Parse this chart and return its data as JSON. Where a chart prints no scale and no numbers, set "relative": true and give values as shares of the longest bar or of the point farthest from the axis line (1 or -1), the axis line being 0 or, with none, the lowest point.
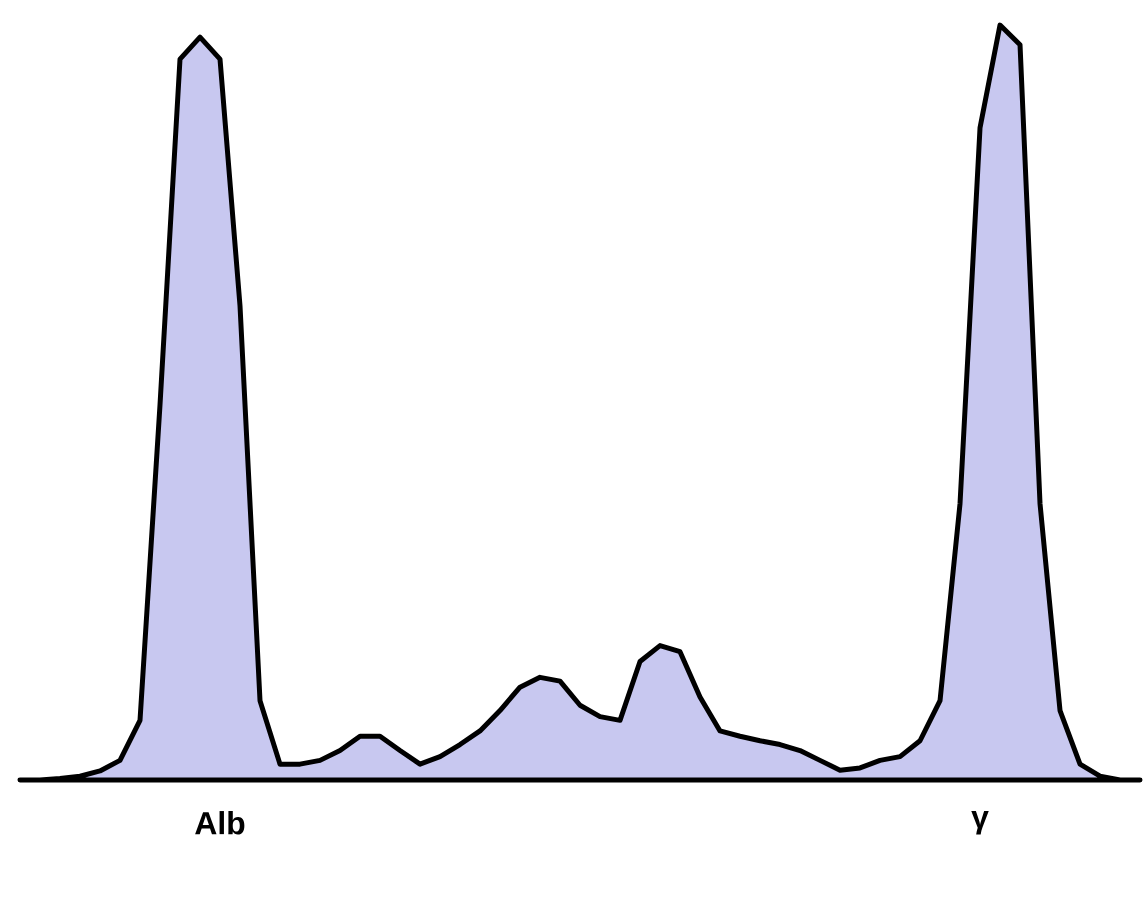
{
  "chart_data": {
    "type": "area",
    "relative": true,
    "color": "#c8c8f0",
    "categories": [
      null,
      null,
      null,
      null,
      null,
      null,
      null,
      null,
      null,
      null,
      "Alb",
      null,
      null,
      null,
      null,
      null,
      null,
      null,
      null,
      null,
      null,
      null,
      null,
      null,
      null,
      null,
      null,
      null,
      null,
      null,
      null,
      null,
      null,
      null,
      null,
      null,
      null,
      null,
      null,
      null,
      null,
      null,
      null,
      null,
      null,
      null,
      null,
      null,
      "γ",
      null,
      null,
      null,
      null,
      null,
      null,
      null,
      null
    ],
    "values": [
      0,
      0,
      0.002,
      0.005,
      0.012,
      0.026,
      0.079,
      0.497,
      0.955,
      0.984,
      0.955,
      0.628,
      0.105,
      0.021,
      0.021,
      0.026,
      0.039,
      0.058,
      0.058,
      0.039,
      0.021,
      0.031,
      0.047,
      0.065,
      0.092,
      0.123,
      0.136,
      0.131,
      0.099,
      0.084,
      0.079,
      0.157,
      0.178,
      0.17,
      0.11,
      0.065,
      0.058,
      0.052,
      0.047,
      0.039,
      0.026,
      0.013,
      0.016,
      0.026,
      0.031,
      0.052,
      0.105,
      0.366,
      0.864,
      1,
      0.974,
      0.366,
      0.092,
      0.021,
      0.005,
      0,
      0
    ]
  }
}
